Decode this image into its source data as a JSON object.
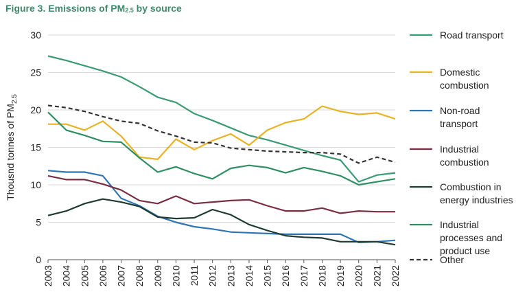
{
  "figure": {
    "title_prefix": "Figure 3. Emissions of PM",
    "title_subscript": "2.5",
    "title_suffix": " by source"
  },
  "chart_data": {
    "type": "line",
    "title": "Figure 3. Emissions of PM2.5 by source",
    "xlabel": "",
    "ylabel": "Thousnd tonnes of PM2.5",
    "ylabel_main": "Thousnd tonnes of PM",
    "ylabel_sub": "2.5",
    "ylim": [
      0,
      30
    ],
    "yticks": [
      0,
      5,
      10,
      15,
      20,
      25,
      30
    ],
    "grid": true,
    "legend_position": "right",
    "x": [
      2003,
      2004,
      2005,
      2006,
      2007,
      2008,
      2009,
      2010,
      2011,
      2012,
      2013,
      2014,
      2015,
      2016,
      2017,
      2018,
      2019,
      2020,
      2021,
      2022
    ],
    "series": [
      {
        "name": "Road transport",
        "legend_lines": [
          "Road transport"
        ],
        "color": "#3a9b72",
        "dash": false,
        "values": [
          27.2,
          26.6,
          25.9,
          25.2,
          24.4,
          23.1,
          21.7,
          21.0,
          19.5,
          18.6,
          17.6,
          16.6,
          16.0,
          15.3,
          14.6,
          13.9,
          13.3,
          10.4,
          11.3,
          11.6
        ]
      },
      {
        "name": "Domestic combustion",
        "legend_lines": [
          "Domestic",
          "combustion"
        ],
        "color": "#e8b223",
        "dash": false,
        "values": [
          18.1,
          18.1,
          17.3,
          18.5,
          16.5,
          13.7,
          13.4,
          16.1,
          14.7,
          15.9,
          16.8,
          15.3,
          17.3,
          18.3,
          18.8,
          20.5,
          19.8,
          19.4,
          19.6,
          18.8
        ]
      },
      {
        "name": "Non-road transport",
        "legend_lines": [
          "Non-road",
          "transport"
        ],
        "color": "#2e75b6",
        "dash": false,
        "values": [
          11.9,
          11.7,
          11.7,
          11.2,
          8.2,
          7.2,
          5.8,
          5.0,
          4.4,
          4.1,
          3.7,
          3.6,
          3.5,
          3.4,
          3.4,
          3.4,
          3.4,
          2.3,
          2.4,
          2.6
        ]
      },
      {
        "name": "Industrial combustion",
        "legend_lines": [
          "Industrial",
          "combustion"
        ],
        "color": "#7a2e43",
        "dash": false,
        "values": [
          11.2,
          10.7,
          10.7,
          10.1,
          9.3,
          7.9,
          7.5,
          8.5,
          7.5,
          7.7,
          7.9,
          8.0,
          7.2,
          6.5,
          6.5,
          6.9,
          6.2,
          6.5,
          6.4,
          6.4
        ]
      },
      {
        "name": "Combustion in energy industries",
        "legend_lines": [
          "Combustion in",
          "energy industries"
        ],
        "color": "#1d3b2e",
        "dash": false,
        "values": [
          5.9,
          6.5,
          7.5,
          8.1,
          7.7,
          7.1,
          5.7,
          5.5,
          5.6,
          6.7,
          6.0,
          4.7,
          3.9,
          3.2,
          3.0,
          2.9,
          2.4,
          2.4,
          2.4,
          2.0
        ]
      },
      {
        "name": "Industrial processes and product use",
        "legend_lines": [
          "Industrial",
          "processes and",
          "product use"
        ],
        "color": "#2f8f63",
        "dash": false,
        "values": [
          19.7,
          17.3,
          16.6,
          15.8,
          15.7,
          13.6,
          11.7,
          12.4,
          11.5,
          10.8,
          12.2,
          12.6,
          12.3,
          11.6,
          12.3,
          11.8,
          11.2,
          10.0,
          10.4,
          10.8
        ]
      },
      {
        "name": "Other",
        "legend_lines": [
          "Other"
        ],
        "color": "#333333",
        "dash": true,
        "values": [
          20.6,
          20.3,
          19.8,
          19.1,
          18.5,
          18.2,
          17.2,
          16.5,
          15.7,
          15.6,
          14.9,
          14.7,
          14.5,
          14.4,
          14.3,
          14.3,
          14.1,
          12.9,
          13.7,
          13.0
        ]
      }
    ]
  }
}
